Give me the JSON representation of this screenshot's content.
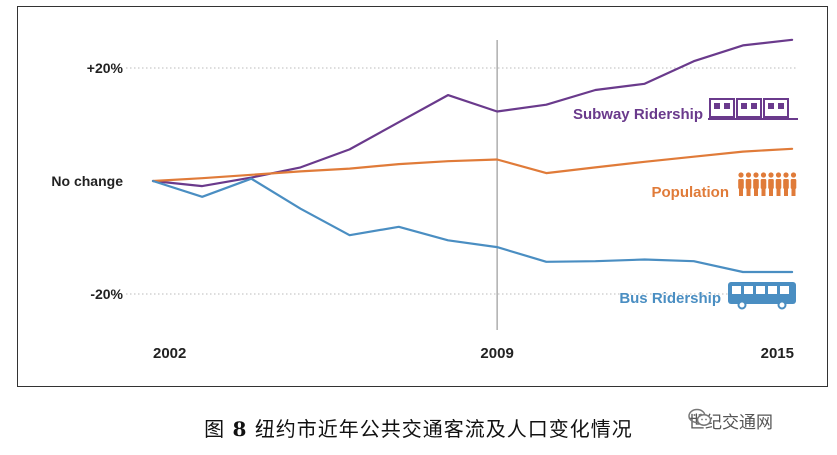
{
  "chart_data": {
    "type": "line",
    "x_ticks": [
      "2002",
      "2009",
      "2015"
    ],
    "y_ticks": [
      {
        "value": 20,
        "label": "+20%"
      },
      {
        "value": 0,
        "label": "No change"
      },
      {
        "value": -20,
        "label": "-20%"
      }
    ],
    "ylim": [
      -27,
      25
    ],
    "xlim": [
      2002,
      2015.1
    ],
    "divider_x": 2009,
    "grid": true,
    "series": [
      {
        "name": "Subway Ridership",
        "color": "#6a3a8c",
        "x": [
          2002,
          2003,
          2004,
          2005,
          2006,
          2007,
          2008,
          2009,
          2010,
          2011,
          2012,
          2013,
          2014,
          2015
        ],
        "y": [
          0,
          -0.9,
          0.6,
          2.4,
          5.6,
          10.4,
          15.2,
          12.3,
          13.5,
          16.1,
          17.2,
          21.2,
          24,
          25
        ]
      },
      {
        "name": "Population",
        "color": "#e07b39",
        "x": [
          2002,
          2003,
          2004,
          2005,
          2006,
          2007,
          2008,
          2009,
          2010,
          2011,
          2012,
          2013,
          2014,
          2015
        ],
        "y": [
          0,
          0.5,
          1.1,
          1.7,
          2.2,
          3,
          3.5,
          3.8,
          1.4,
          2.4,
          3.4,
          4.3,
          5.2,
          5.7
        ]
      },
      {
        "name": "Bus Ridership",
        "color": "#4a8ec2",
        "x": [
          2002,
          2003,
          2004,
          2005,
          2006,
          2007,
          2008,
          2009,
          2010,
          2011,
          2012,
          2013,
          2014,
          2015
        ],
        "y": [
          0,
          -2.8,
          0.4,
          -4.9,
          -9.6,
          -8.1,
          -10.5,
          -11.7,
          -14.3,
          -14.2,
          -13.9,
          -14.2,
          -16.1,
          -16.1
        ]
      }
    ]
  },
  "caption": {
    "prefix": "图",
    "number": "8",
    "text": "纽约市近年公共交通客流及人口变化情况"
  },
  "watermark": {
    "text": "世纪交通网",
    "icon": "wechat-icon"
  }
}
